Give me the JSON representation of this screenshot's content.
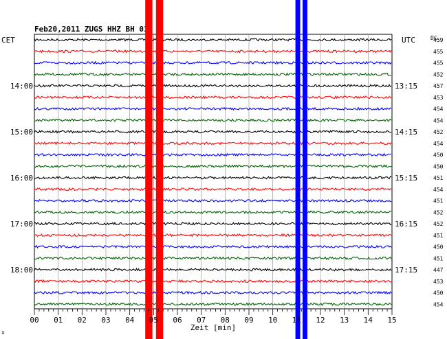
{
  "chart_data": {
    "type": "line",
    "title": "Feb20,2011   ZUGS HHZ BH 01",
    "left_axis_label": "CET",
    "right_axis_label": "UTC",
    "dc_label": "DC",
    "xlabel": "Zeit [min]",
    "xlim": [
      0,
      15
    ],
    "x_ticks": [
      "00",
      "01",
      "02",
      "03",
      "04",
      "05",
      "06",
      "07",
      "08",
      "09",
      "10",
      "11",
      "12",
      "13",
      "14",
      "15"
    ],
    "trace_colors": [
      "#000000",
      "#ff0000",
      "#0000ff",
      "#006400"
    ],
    "left_time_labels": [
      {
        "trace": 4,
        "label": "14:00"
      },
      {
        "trace": 8,
        "label": "15:00"
      },
      {
        "trace": 12,
        "label": "16:00"
      },
      {
        "trace": 16,
        "label": "17:00"
      },
      {
        "trace": 20,
        "label": "18:00"
      }
    ],
    "right_time_labels": [
      {
        "trace": 4,
        "label": "13:15"
      },
      {
        "trace": 8,
        "label": "14:15"
      },
      {
        "trace": 12,
        "label": "15:15"
      },
      {
        "trace": 16,
        "label": "16:15"
      },
      {
        "trace": 20,
        "label": "17:15"
      }
    ],
    "dc_values": [
      "459",
      "455",
      "455",
      "452",
      "457",
      "453",
      "454",
      "454",
      "452",
      "454",
      "450",
      "450",
      "451",
      "454",
      "451",
      "452",
      "452",
      "451",
      "450",
      "451",
      "447",
      "453",
      "450",
      "454"
    ],
    "events": [
      {
        "color": "#ff0000",
        "x_start": 4.65,
        "x_end": 4.95
      },
      {
        "color": "#ff0000",
        "x_start": 5.1,
        "x_end": 5.4
      },
      {
        "color": "#0000ff",
        "x_start": 10.95,
        "x_end": 11.15
      },
      {
        "color": "#0000ff",
        "x_start": 11.25,
        "x_end": 11.45
      }
    ],
    "grid": true,
    "corner_mark": "x"
  }
}
